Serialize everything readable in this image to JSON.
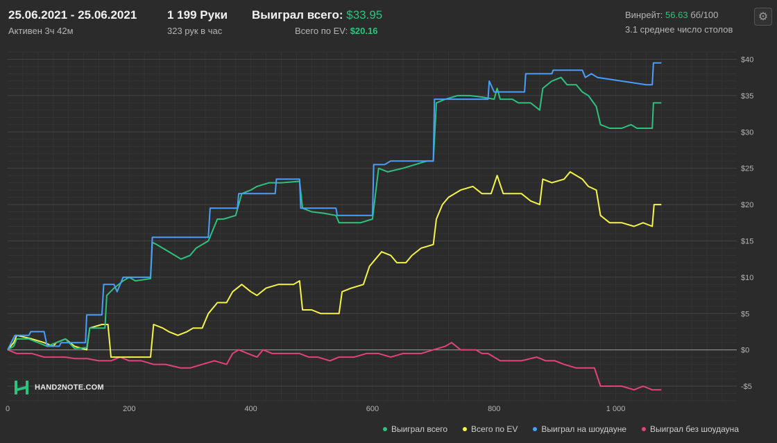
{
  "header": {
    "date_range": "25.06.2021 - 25.06.2021",
    "active_time": "Активен 3ч 42м",
    "hands": "1 199 Руки",
    "hands_per_hour": "323 рук в час",
    "won_total_label": "Выиграл всего:",
    "won_total_value": "$33.95",
    "ev_total_label": "Всего по EV:",
    "ev_total_value": "$20.16",
    "winrate_label": "Винрейт:",
    "winrate_value": "56.63",
    "winrate_unit": "бб/100",
    "avg_tables": "3.1 среднее число столов"
  },
  "logo_text": "HAND2NOTE.COM",
  "colors": {
    "background": "#2b2b2b",
    "grid": "#444444",
    "zero_line": "#8a8a8a",
    "accent_green": "#2ec27e"
  },
  "chart_data": {
    "type": "line",
    "xlim": [
      0,
      1199
    ],
    "ylim": [
      -7,
      41
    ],
    "x_ticks": [
      0,
      200,
      400,
      600,
      800,
      1000
    ],
    "x_tick_labels": [
      "0",
      "200",
      "400",
      "600",
      "800",
      "1 000"
    ],
    "y_ticks": [
      -5,
      0,
      5,
      10,
      15,
      20,
      25,
      30,
      35,
      40
    ],
    "y_tick_labels": [
      "-$5",
      "$0",
      "$5",
      "$10",
      "$15",
      "$20",
      "$25",
      "$30",
      "$35",
      "$40"
    ],
    "legend_position": "bottom-right",
    "grid": true,
    "series": [
      {
        "name": "Выиграл всего",
        "color": "#2ec27e",
        "points": [
          [
            0,
            0
          ],
          [
            10,
            0.5
          ],
          [
            15,
            1.5
          ],
          [
            35,
            1.5
          ],
          [
            50,
            1.0
          ],
          [
            65,
            0.5
          ],
          [
            80,
            1.0
          ],
          [
            95,
            1.5
          ],
          [
            110,
            0.2
          ],
          [
            130,
            0.3
          ],
          [
            135,
            3.0
          ],
          [
            160,
            3.0
          ],
          [
            163,
            7.5
          ],
          [
            175,
            8.5
          ],
          [
            190,
            9.5
          ],
          [
            200,
            10.0
          ],
          [
            210,
            9.5
          ],
          [
            235,
            9.8
          ],
          [
            238,
            14.8
          ],
          [
            245,
            14.5
          ],
          [
            255,
            14.0
          ],
          [
            275,
            13.0
          ],
          [
            285,
            12.5
          ],
          [
            300,
            13.0
          ],
          [
            310,
            14.0
          ],
          [
            330,
            15.0
          ],
          [
            345,
            18.0
          ],
          [
            355,
            18.0
          ],
          [
            375,
            18.5
          ],
          [
            385,
            21.5
          ],
          [
            400,
            22.0
          ],
          [
            410,
            22.5
          ],
          [
            430,
            23.0
          ],
          [
            450,
            23.0
          ],
          [
            480,
            23.2
          ],
          [
            485,
            19.5
          ],
          [
            500,
            19.0
          ],
          [
            520,
            18.8
          ],
          [
            540,
            18.5
          ],
          [
            545,
            17.5
          ],
          [
            560,
            17.5
          ],
          [
            580,
            17.5
          ],
          [
            600,
            18.0
          ],
          [
            610,
            25.0
          ],
          [
            625,
            24.5
          ],
          [
            650,
            25.0
          ],
          [
            670,
            25.5
          ],
          [
            690,
            26.0
          ],
          [
            700,
            26.0
          ],
          [
            705,
            34.0
          ],
          [
            720,
            34.5
          ],
          [
            740,
            35.0
          ],
          [
            760,
            35.0
          ],
          [
            780,
            34.8
          ],
          [
            800,
            34.5
          ],
          [
            805,
            36.0
          ],
          [
            810,
            34.5
          ],
          [
            830,
            34.5
          ],
          [
            840,
            34.0
          ],
          [
            860,
            34.0
          ],
          [
            875,
            33.0
          ],
          [
            880,
            36.0
          ],
          [
            895,
            37.0
          ],
          [
            910,
            37.5
          ],
          [
            920,
            36.5
          ],
          [
            935,
            36.5
          ],
          [
            945,
            35.5
          ],
          [
            955,
            35.0
          ],
          [
            968,
            33.5
          ],
          [
            975,
            31.0
          ],
          [
            990,
            30.5
          ],
          [
            1010,
            30.5
          ],
          [
            1025,
            31.0
          ],
          [
            1035,
            30.5
          ],
          [
            1045,
            30.5
          ],
          [
            1060,
            30.5
          ],
          [
            1062,
            34.0
          ],
          [
            1075,
            34.0
          ]
        ]
      },
      {
        "name": "Всего по EV",
        "color": "#f5f54a",
        "points": [
          [
            0,
            0
          ],
          [
            10,
            1.0
          ],
          [
            15,
            2.0
          ],
          [
            40,
            1.5
          ],
          [
            60,
            1.0
          ],
          [
            75,
            0.5
          ],
          [
            80,
            1.0
          ],
          [
            95,
            1.5
          ],
          [
            110,
            0.5
          ],
          [
            130,
            0.0
          ],
          [
            135,
            3.0
          ],
          [
            155,
            3.5
          ],
          [
            165,
            3.5
          ],
          [
            170,
            -1.0
          ],
          [
            185,
            -1.0
          ],
          [
            200,
            -1.0
          ],
          [
            215,
            -1.0
          ],
          [
            235,
            -1.0
          ],
          [
            240,
            3.5
          ],
          [
            255,
            3.0
          ],
          [
            265,
            2.5
          ],
          [
            280,
            2.0
          ],
          [
            295,
            2.5
          ],
          [
            305,
            3.0
          ],
          [
            320,
            3.0
          ],
          [
            330,
            5.0
          ],
          [
            345,
            6.5
          ],
          [
            360,
            6.5
          ],
          [
            370,
            8.0
          ],
          [
            385,
            9.0
          ],
          [
            400,
            8.0
          ],
          [
            410,
            7.5
          ],
          [
            425,
            8.5
          ],
          [
            445,
            9.0
          ],
          [
            470,
            9.0
          ],
          [
            480,
            9.5
          ],
          [
            485,
            5.5
          ],
          [
            500,
            5.5
          ],
          [
            515,
            5.0
          ],
          [
            530,
            5.0
          ],
          [
            545,
            5.0
          ],
          [
            550,
            8.0
          ],
          [
            565,
            8.5
          ],
          [
            585,
            9.0
          ],
          [
            595,
            11.5
          ],
          [
            605,
            12.5
          ],
          [
            615,
            13.5
          ],
          [
            630,
            13.0
          ],
          [
            640,
            12.0
          ],
          [
            655,
            12.0
          ],
          [
            665,
            13.0
          ],
          [
            680,
            14.0
          ],
          [
            700,
            14.5
          ],
          [
            705,
            18.0
          ],
          [
            715,
            20.0
          ],
          [
            725,
            21.0
          ],
          [
            745,
            22.0
          ],
          [
            765,
            22.5
          ],
          [
            780,
            21.5
          ],
          [
            795,
            21.5
          ],
          [
            805,
            24.0
          ],
          [
            815,
            21.5
          ],
          [
            830,
            21.5
          ],
          [
            845,
            21.5
          ],
          [
            860,
            20.5
          ],
          [
            875,
            20.0
          ],
          [
            880,
            23.5
          ],
          [
            895,
            23.0
          ],
          [
            915,
            23.5
          ],
          [
            925,
            24.5
          ],
          [
            935,
            24.0
          ],
          [
            945,
            23.5
          ],
          [
            955,
            22.5
          ],
          [
            968,
            22.0
          ],
          [
            975,
            18.5
          ],
          [
            990,
            17.5
          ],
          [
            1010,
            17.5
          ],
          [
            1030,
            17.0
          ],
          [
            1045,
            17.5
          ],
          [
            1060,
            17.0
          ],
          [
            1063,
            20.0
          ],
          [
            1075,
            20.0
          ]
        ]
      },
      {
        "name": "Выиграл на шоудауне",
        "color": "#4a9eff",
        "points": [
          [
            0,
            0
          ],
          [
            12,
            2.0
          ],
          [
            35,
            2.0
          ],
          [
            38,
            2.5
          ],
          [
            60,
            2.5
          ],
          [
            65,
            0.5
          ],
          [
            85,
            0.5
          ],
          [
            88,
            1.0
          ],
          [
            110,
            1.0
          ],
          [
            128,
            1.0
          ],
          [
            130,
            4.8
          ],
          [
            155,
            4.8
          ],
          [
            158,
            9.0
          ],
          [
            175,
            9.0
          ],
          [
            180,
            8.0
          ],
          [
            190,
            10.0
          ],
          [
            235,
            10.0
          ],
          [
            238,
            15.5
          ],
          [
            330,
            15.5
          ],
          [
            333,
            19.5
          ],
          [
            378,
            19.5
          ],
          [
            380,
            21.5
          ],
          [
            440,
            21.5
          ],
          [
            442,
            23.5
          ],
          [
            480,
            23.5
          ],
          [
            482,
            19.5
          ],
          [
            540,
            19.5
          ],
          [
            542,
            18.5
          ],
          [
            600,
            18.5
          ],
          [
            602,
            25.5
          ],
          [
            620,
            25.5
          ],
          [
            630,
            26.0
          ],
          [
            655,
            26.0
          ],
          [
            657,
            26.0
          ],
          [
            700,
            26.0
          ],
          [
            702,
            34.5
          ],
          [
            790,
            34.5
          ],
          [
            792,
            37.0
          ],
          [
            800,
            35.5
          ],
          [
            850,
            35.5
          ],
          [
            852,
            38.0
          ],
          [
            895,
            38.0
          ],
          [
            897,
            38.5
          ],
          [
            945,
            38.5
          ],
          [
            950,
            37.5
          ],
          [
            960,
            38.0
          ],
          [
            970,
            37.5
          ],
          [
            1050,
            36.5
          ],
          [
            1060,
            36.5
          ],
          [
            1062,
            39.5
          ],
          [
            1075,
            39.5
          ]
        ]
      },
      {
        "name": "Выиграл без шоудауна",
        "color": "#e4427a",
        "points": [
          [
            0,
            0
          ],
          [
            15,
            -0.5
          ],
          [
            40,
            -0.5
          ],
          [
            60,
            -1.0
          ],
          [
            80,
            -1.0
          ],
          [
            95,
            -1.0
          ],
          [
            110,
            -1.2
          ],
          [
            130,
            -1.2
          ],
          [
            150,
            -1.5
          ],
          [
            170,
            -1.5
          ],
          [
            185,
            -1.0
          ],
          [
            200,
            -1.5
          ],
          [
            220,
            -1.5
          ],
          [
            240,
            -2.0
          ],
          [
            260,
            -2.0
          ],
          [
            285,
            -2.5
          ],
          [
            300,
            -2.5
          ],
          [
            320,
            -2.0
          ],
          [
            340,
            -1.5
          ],
          [
            360,
            -2.0
          ],
          [
            370,
            -0.5
          ],
          [
            380,
            0.0
          ],
          [
            395,
            -0.5
          ],
          [
            410,
            -1.0
          ],
          [
            420,
            0.0
          ],
          [
            435,
            -0.5
          ],
          [
            460,
            -0.5
          ],
          [
            480,
            -0.5
          ],
          [
            495,
            -1.0
          ],
          [
            510,
            -1.0
          ],
          [
            530,
            -1.5
          ],
          [
            545,
            -1.0
          ],
          [
            570,
            -1.0
          ],
          [
            590,
            -0.5
          ],
          [
            610,
            -0.5
          ],
          [
            630,
            -1.0
          ],
          [
            650,
            -0.5
          ],
          [
            665,
            -0.5
          ],
          [
            680,
            -0.5
          ],
          [
            700,
            0.0
          ],
          [
            720,
            0.5
          ],
          [
            730,
            1.0
          ],
          [
            745,
            0.0
          ],
          [
            760,
            0.0
          ],
          [
            770,
            0.0
          ],
          [
            780,
            -0.5
          ],
          [
            790,
            -0.5
          ],
          [
            810,
            -1.5
          ],
          [
            830,
            -1.5
          ],
          [
            845,
            -1.5
          ],
          [
            870,
            -1.0
          ],
          [
            885,
            -1.5
          ],
          [
            900,
            -1.5
          ],
          [
            915,
            -2.0
          ],
          [
            935,
            -2.5
          ],
          [
            950,
            -2.5
          ],
          [
            965,
            -2.5
          ],
          [
            975,
            -5.0
          ],
          [
            990,
            -5.0
          ],
          [
            1010,
            -5.0
          ],
          [
            1030,
            -5.5
          ],
          [
            1045,
            -5.0
          ],
          [
            1060,
            -5.5
          ],
          [
            1075,
            -5.5
          ]
        ]
      }
    ]
  }
}
